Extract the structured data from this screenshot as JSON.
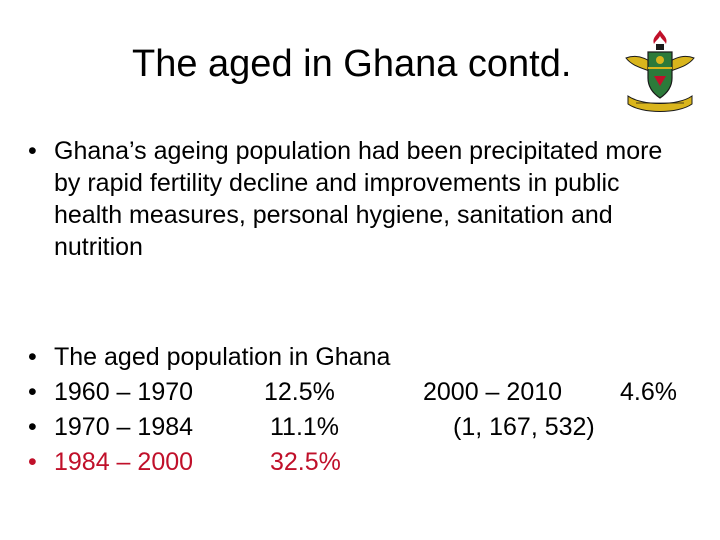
{
  "slide": {
    "title": "The aged in Ghana contd.",
    "logo_icon": "university-crest-icon",
    "colors": {
      "text": "#000000",
      "highlight": "#c0102a",
      "background": "#ffffff"
    },
    "intro_bullet": "Ghana’s ageing population had been precipitated more by rapid fertility decline and improvements in public health measures, personal hygiene, sanitation and nutrition",
    "list_heading": "The aged population in Ghana",
    "rows": [
      {
        "period": "1960 – 1970",
        "rate": "12.5%",
        "period2": "2000 – 2010",
        "rate2": "4.6%"
      },
      {
        "period": "1970 – 1984",
        "rate": "11.1%",
        "note": "(1, 167, 532)"
      },
      {
        "period": "1984 – 2000",
        "rate": "32.5%"
      }
    ],
    "bullet_glyph": "•"
  }
}
